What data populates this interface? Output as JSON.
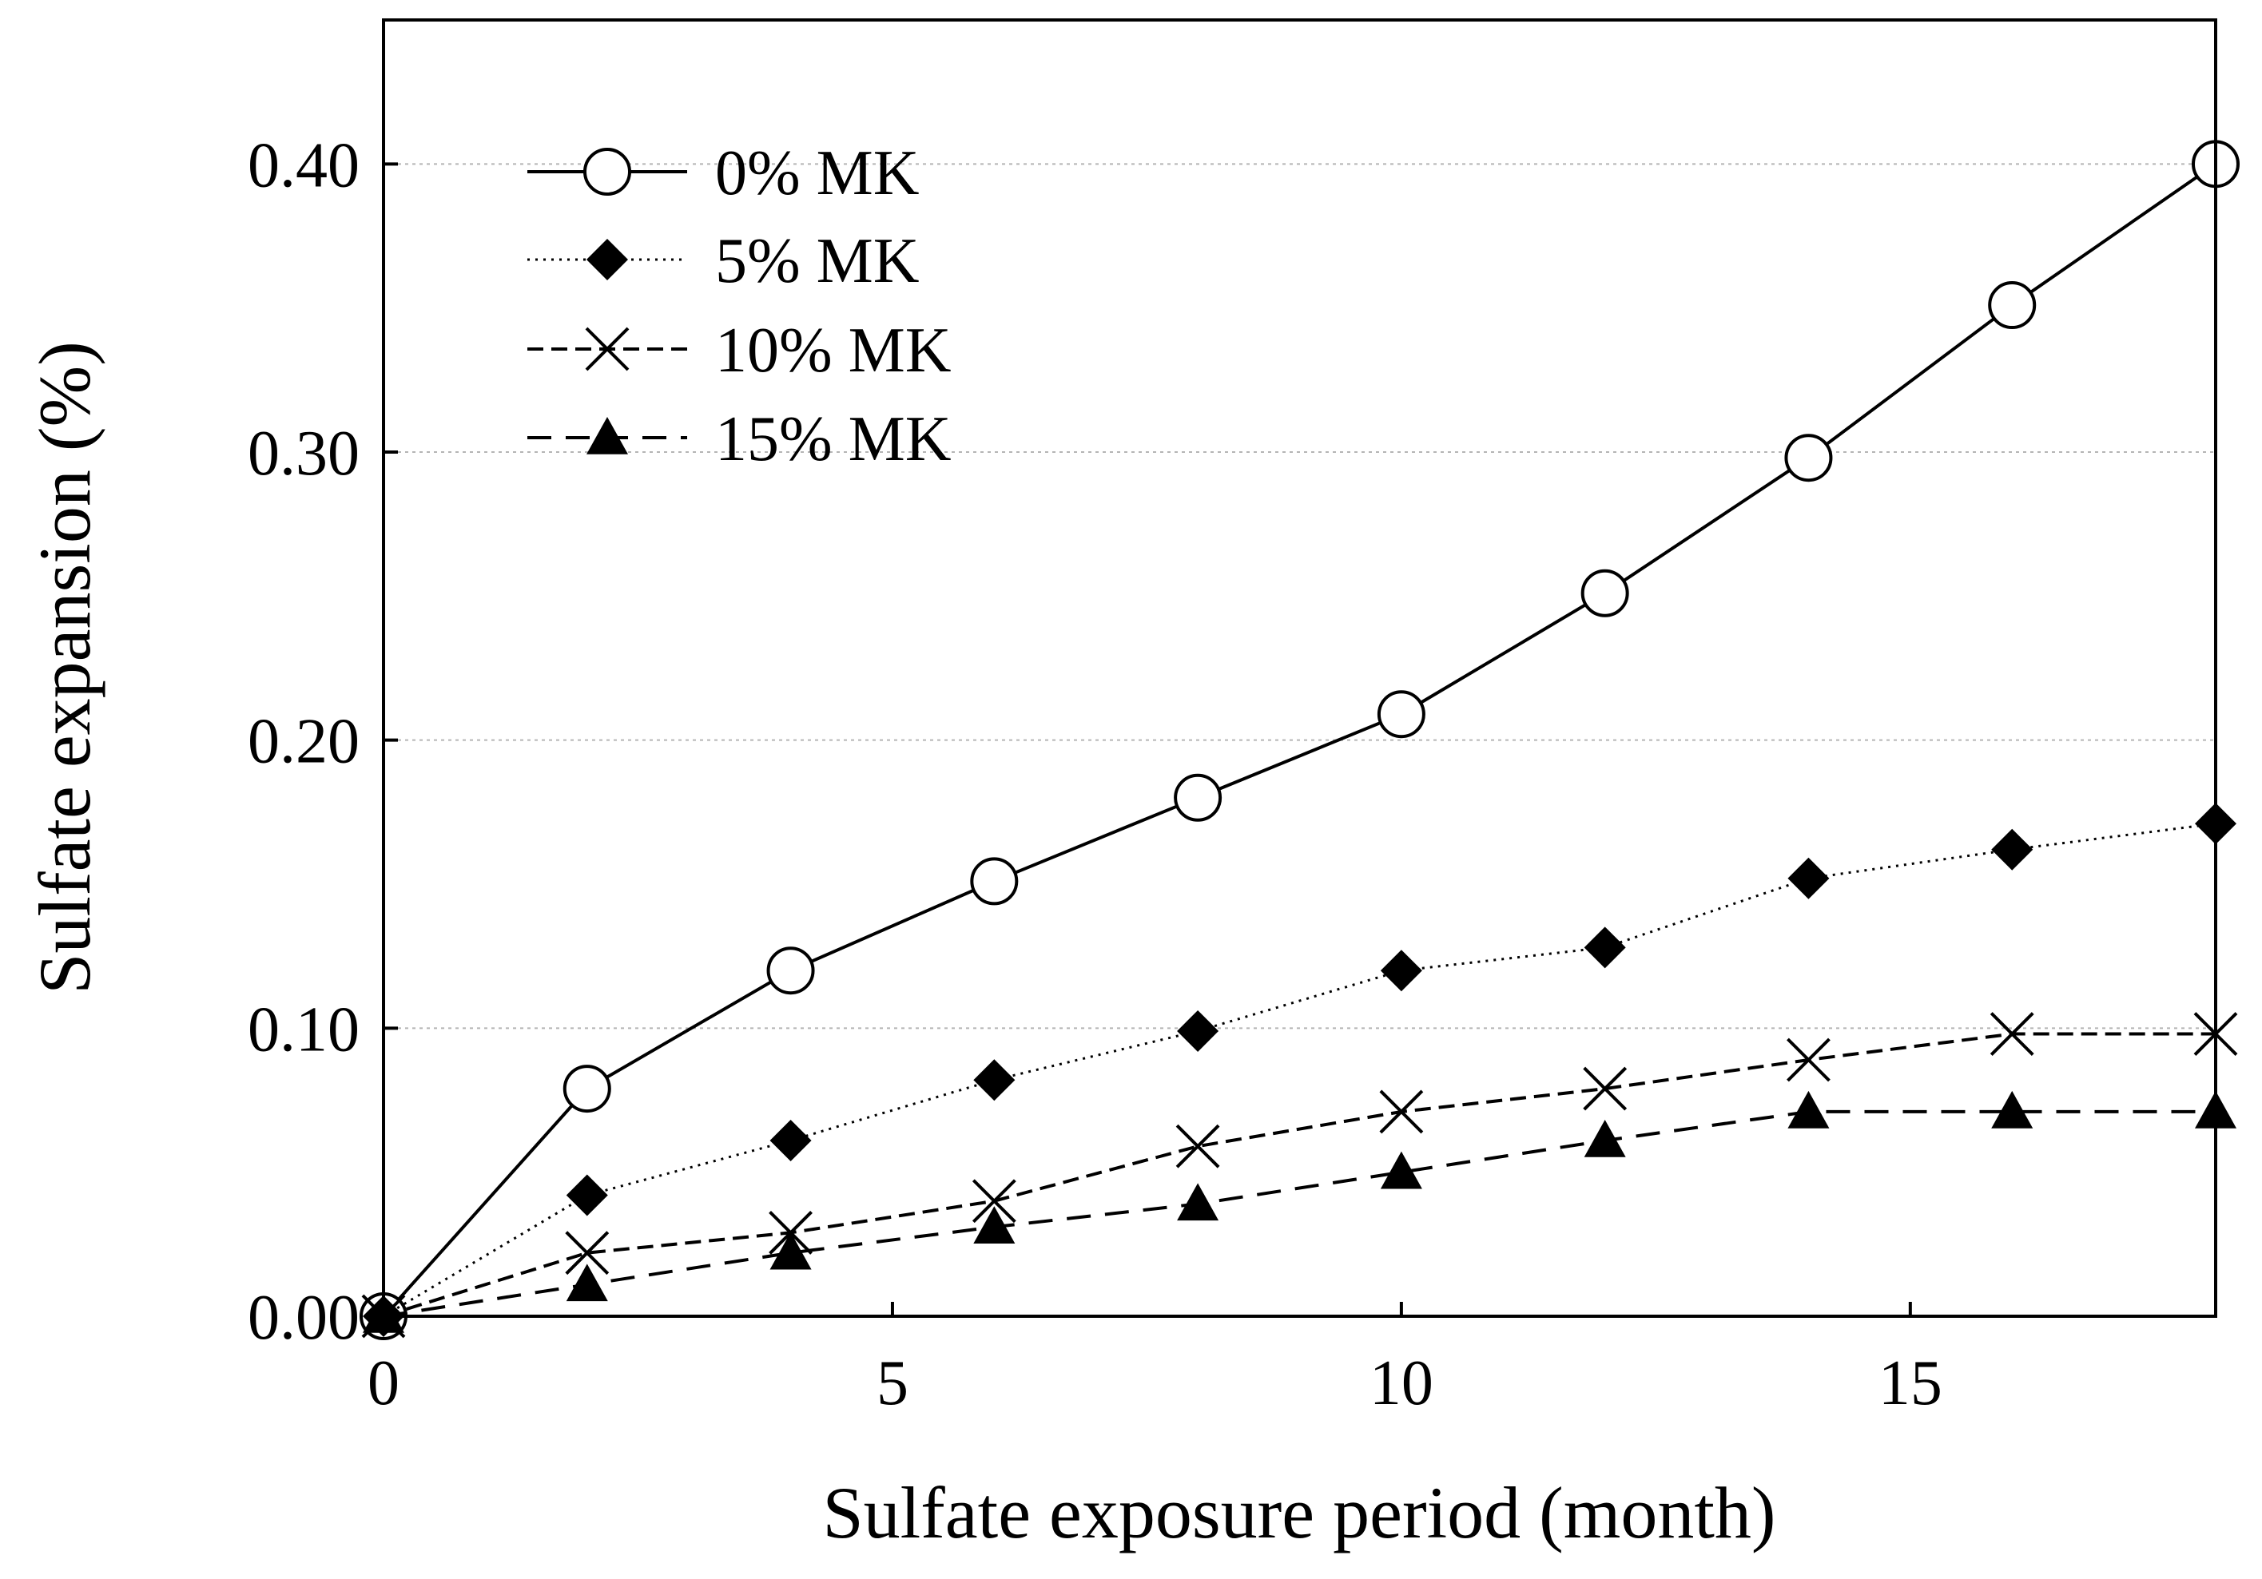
{
  "chart_data": {
    "type": "line",
    "title": "",
    "xlabel": "Sulfate exposure period (month)",
    "ylabel": "Sulfate expansion (%)",
    "xlim": [
      0,
      18
    ],
    "ylim": [
      0,
      0.45
    ],
    "x_ticks": [
      0,
      5,
      10,
      15
    ],
    "x_tick_labels": [
      "0",
      "5",
      "10",
      "15"
    ],
    "y_ticks": [
      0,
      0.1,
      0.2,
      0.3,
      0.4
    ],
    "y_tick_labels": [
      "0.00",
      "0.10",
      "0.20",
      "0.30",
      "0.40"
    ],
    "grid": "horizontal-dotted",
    "legend_position": "top-left",
    "x": [
      0,
      2,
      4,
      6,
      8,
      10,
      12,
      14,
      16,
      18
    ],
    "series": [
      {
        "name": "0% MK",
        "marker": "circle-open",
        "line": "solid",
        "values": [
          0.0,
          0.079,
          0.12,
          0.151,
          0.18,
          0.209,
          0.251,
          0.298,
          0.351,
          0.4
        ]
      },
      {
        "name": "5% MK",
        "marker": "diamond-filled",
        "line": "dotted",
        "values": [
          0.0,
          0.042,
          0.061,
          0.082,
          0.099,
          0.12,
          0.128,
          0.152,
          0.162,
          0.171
        ]
      },
      {
        "name": "10% MK",
        "marker": "x",
        "line": "short-dash",
        "values": [
          0.0,
          0.022,
          0.029,
          0.04,
          0.059,
          0.071,
          0.079,
          0.089,
          0.098,
          0.098
        ]
      },
      {
        "name": "15% MK",
        "marker": "triangle-filled",
        "line": "long-dash",
        "values": [
          0.0,
          0.011,
          0.022,
          0.031,
          0.039,
          0.05,
          0.061,
          0.071,
          0.071,
          0.071
        ]
      }
    ]
  }
}
